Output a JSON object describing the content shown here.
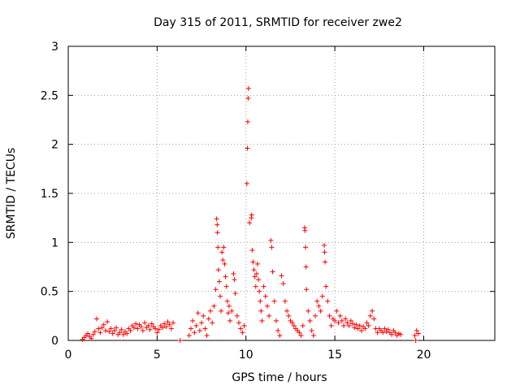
{
  "chart_data": {
    "type": "scatter",
    "title": "Day 315 of 2011, SRMTID for receiver zwe2",
    "xlabel": "GPS time / hours",
    "ylabel": "SRMTID / TECUs",
    "xlim": [
      0,
      24
    ],
    "ylim": [
      0,
      3
    ],
    "xticks": [
      0,
      5,
      10,
      15,
      20
    ],
    "yticks": [
      0,
      0.5,
      1,
      1.5,
      2,
      2.5,
      3
    ],
    "ytick_labels": [
      "0",
      "0.5",
      "1",
      "1.5",
      "2",
      "2.5",
      "3"
    ],
    "grid": true,
    "marker": "+",
    "color": "#ff0000",
    "series": [
      {
        "name": "SRMTID",
        "points": [
          [
            0.8,
            0.01
          ],
          [
            0.9,
            0.03
          ],
          [
            1.0,
            0.05
          ],
          [
            1.1,
            0.07
          ],
          [
            1.2,
            0.04
          ],
          [
            1.3,
            0.02
          ],
          [
            1.4,
            0.06
          ],
          [
            1.5,
            0.09
          ],
          [
            1.6,
            0.22
          ],
          [
            1.7,
            0.12
          ],
          [
            1.8,
            0.08
          ],
          [
            1.9,
            0.13
          ],
          [
            2.0,
            0.16
          ],
          [
            2.1,
            0.1
          ],
          [
            2.2,
            0.19
          ],
          [
            2.3,
            0.09
          ],
          [
            2.4,
            0.12
          ],
          [
            2.5,
            0.07
          ],
          [
            2.6,
            0.1
          ],
          [
            2.7,
            0.13
          ],
          [
            2.8,
            0.06
          ],
          [
            2.9,
            0.08
          ],
          [
            3.0,
            0.11
          ],
          [
            3.1,
            0.06
          ],
          [
            3.2,
            0.09
          ],
          [
            3.3,
            0.07
          ],
          [
            3.4,
            0.12
          ],
          [
            3.5,
            0.1
          ],
          [
            3.6,
            0.15
          ],
          [
            3.7,
            0.13
          ],
          [
            3.8,
            0.17
          ],
          [
            3.9,
            0.12
          ],
          [
            4.0,
            0.16
          ],
          [
            4.1,
            0.14
          ],
          [
            4.2,
            0.1
          ],
          [
            4.3,
            0.18
          ],
          [
            4.4,
            0.13
          ],
          [
            4.5,
            0.15
          ],
          [
            4.6,
            0.11
          ],
          [
            4.7,
            0.17
          ],
          [
            4.8,
            0.14
          ],
          [
            4.9,
            0.12
          ],
          [
            5.0,
            0.08
          ],
          [
            5.1,
            0.11
          ],
          [
            5.2,
            0.15
          ],
          [
            5.3,
            0.13
          ],
          [
            5.4,
            0.17
          ],
          [
            5.5,
            0.14
          ],
          [
            5.6,
            0.19
          ],
          [
            5.7,
            0.16
          ],
          [
            5.8,
            0.12
          ],
          [
            5.9,
            0.18
          ],
          [
            6.3,
            0.0
          ],
          [
            6.8,
            0.05
          ],
          [
            6.9,
            0.12
          ],
          [
            7.0,
            0.2
          ],
          [
            7.1,
            0.08
          ],
          [
            7.2,
            0.15
          ],
          [
            7.3,
            0.28
          ],
          [
            7.4,
            0.1
          ],
          [
            7.5,
            0.18
          ],
          [
            7.6,
            0.25
          ],
          [
            7.7,
            0.12
          ],
          [
            7.8,
            0.05
          ],
          [
            7.9,
            0.22
          ],
          [
            8.0,
            0.3
          ],
          [
            8.1,
            0.18
          ],
          [
            8.2,
            0.35
          ],
          [
            8.3,
            0.52
          ],
          [
            8.35,
            1.24
          ],
          [
            8.38,
            1.18
          ],
          [
            8.4,
            1.1
          ],
          [
            8.42,
            0.95
          ],
          [
            8.45,
            0.72
          ],
          [
            8.5,
            0.6
          ],
          [
            8.55,
            0.45
          ],
          [
            8.6,
            0.3
          ],
          [
            8.65,
            0.9
          ],
          [
            8.7,
            0.82
          ],
          [
            8.75,
            0.95
          ],
          [
            8.8,
            0.78
          ],
          [
            8.85,
            0.65
          ],
          [
            8.9,
            0.55
          ],
          [
            8.95,
            0.4
          ],
          [
            9.0,
            0.28
          ],
          [
            9.05,
            0.35
          ],
          [
            9.1,
            0.2
          ],
          [
            9.2,
            0.3
          ],
          [
            9.3,
            0.68
          ],
          [
            9.35,
            0.62
          ],
          [
            9.4,
            0.48
          ],
          [
            9.5,
            0.25
          ],
          [
            9.6,
            0.18
          ],
          [
            9.7,
            0.12
          ],
          [
            9.8,
            0.08
          ],
          [
            9.9,
            0.15
          ],
          [
            10.05,
            1.6
          ],
          [
            10.08,
            1.96
          ],
          [
            10.1,
            2.23
          ],
          [
            10.12,
            2.47
          ],
          [
            10.14,
            2.57
          ],
          [
            10.2,
            1.2
          ],
          [
            10.3,
            1.25
          ],
          [
            10.32,
            1.28
          ],
          [
            10.35,
            0.92
          ],
          [
            10.4,
            0.8
          ],
          [
            10.45,
            0.72
          ],
          [
            10.5,
            0.65
          ],
          [
            10.55,
            0.55
          ],
          [
            10.6,
            0.68
          ],
          [
            10.65,
            0.78
          ],
          [
            10.7,
            0.62
          ],
          [
            10.75,
            0.5
          ],
          [
            10.8,
            0.4
          ],
          [
            10.85,
            0.3
          ],
          [
            10.9,
            0.2
          ],
          [
            11.0,
            0.55
          ],
          [
            11.1,
            0.45
          ],
          [
            11.2,
            0.35
          ],
          [
            11.3,
            0.25
          ],
          [
            11.4,
            1.02
          ],
          [
            11.45,
            0.95
          ],
          [
            11.5,
            0.7
          ],
          [
            11.6,
            0.4
          ],
          [
            11.7,
            0.2
          ],
          [
            11.8,
            0.1
          ],
          [
            11.9,
            0.05
          ],
          [
            12.0,
            0.66
          ],
          [
            12.1,
            0.58
          ],
          [
            12.2,
            0.4
          ],
          [
            12.3,
            0.3
          ],
          [
            12.4,
            0.25
          ],
          [
            12.5,
            0.2
          ],
          [
            12.6,
            0.18
          ],
          [
            12.7,
            0.15
          ],
          [
            12.8,
            0.12
          ],
          [
            12.9,
            0.1
          ],
          [
            13.0,
            0.08
          ],
          [
            13.1,
            0.05
          ],
          [
            13.2,
            0.15
          ],
          [
            13.3,
            1.15
          ],
          [
            13.32,
            1.12
          ],
          [
            13.35,
            0.95
          ],
          [
            13.38,
            0.75
          ],
          [
            13.4,
            0.52
          ],
          [
            13.5,
            0.3
          ],
          [
            13.6,
            0.2
          ],
          [
            13.7,
            0.1
          ],
          [
            13.8,
            0.05
          ],
          [
            13.9,
            0.25
          ],
          [
            14.0,
            0.4
          ],
          [
            14.1,
            0.35
          ],
          [
            14.2,
            0.3
          ],
          [
            14.3,
            0.45
          ],
          [
            14.4,
            0.97
          ],
          [
            14.42,
            0.9
          ],
          [
            14.45,
            0.8
          ],
          [
            14.5,
            0.55
          ],
          [
            14.6,
            0.4
          ],
          [
            14.7,
            0.25
          ],
          [
            14.8,
            0.15
          ],
          [
            14.9,
            0.22
          ],
          [
            15.0,
            0.2
          ],
          [
            15.1,
            0.3
          ],
          [
            15.2,
            0.18
          ],
          [
            15.3,
            0.25
          ],
          [
            15.4,
            0.2
          ],
          [
            15.5,
            0.15
          ],
          [
            15.6,
            0.22
          ],
          [
            15.7,
            0.18
          ],
          [
            15.8,
            0.15
          ],
          [
            15.9,
            0.2
          ],
          [
            16.0,
            0.17
          ],
          [
            16.1,
            0.13
          ],
          [
            16.2,
            0.16
          ],
          [
            16.3,
            0.12
          ],
          [
            16.4,
            0.15
          ],
          [
            16.5,
            0.1
          ],
          [
            16.6,
            0.14
          ],
          [
            16.7,
            0.12
          ],
          [
            16.8,
            0.18
          ],
          [
            16.9,
            0.15
          ],
          [
            17.0,
            0.25
          ],
          [
            17.1,
            0.3
          ],
          [
            17.2,
            0.22
          ],
          [
            17.3,
            0.12
          ],
          [
            17.4,
            0.08
          ],
          [
            17.5,
            0.12
          ],
          [
            17.6,
            0.1
          ],
          [
            17.7,
            0.08
          ],
          [
            17.8,
            0.12
          ],
          [
            17.9,
            0.09
          ],
          [
            18.0,
            0.11
          ],
          [
            18.1,
            0.08
          ],
          [
            18.2,
            0.06
          ],
          [
            18.3,
            0.1
          ],
          [
            18.4,
            0.08
          ],
          [
            18.5,
            0.05
          ],
          [
            18.6,
            0.07
          ],
          [
            18.7,
            0.06
          ],
          [
            19.5,
            0.05
          ],
          [
            19.6,
            0.1
          ],
          [
            19.55,
            0.0
          ],
          [
            19.7,
            0.07
          ]
        ]
      }
    ]
  }
}
